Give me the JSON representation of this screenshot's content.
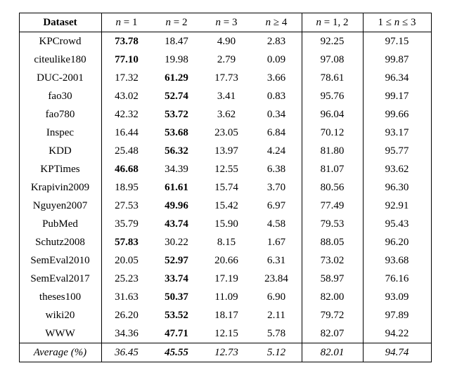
{
  "table": {
    "columns": [
      "Dataset",
      "n = 1",
      "n = 2",
      "n = 3",
      "n ≥ 4",
      "n = 1, 2",
      "1 ≤ n ≤ 3"
    ],
    "rows": [
      {
        "name": "KPCrowd",
        "v": [
          "73.78",
          "18.47",
          "4.90",
          "2.83",
          "92.25",
          "97.15"
        ],
        "bold": [
          0
        ]
      },
      {
        "name": "citeulike180",
        "v": [
          "77.10",
          "19.98",
          "2.79",
          "0.09",
          "97.08",
          "99.87"
        ],
        "bold": [
          0
        ]
      },
      {
        "name": "DUC-2001",
        "v": [
          "17.32",
          "61.29",
          "17.73",
          "3.66",
          "78.61",
          "96.34"
        ],
        "bold": [
          1
        ]
      },
      {
        "name": "fao30",
        "v": [
          "43.02",
          "52.74",
          "3.41",
          "0.83",
          "95.76",
          "99.17"
        ],
        "bold": [
          1
        ]
      },
      {
        "name": "fao780",
        "v": [
          "42.32",
          "53.72",
          "3.62",
          "0.34",
          "96.04",
          "99.66"
        ],
        "bold": [
          1
        ]
      },
      {
        "name": "Inspec",
        "v": [
          "16.44",
          "53.68",
          "23.05",
          "6.84",
          "70.12",
          "93.17"
        ],
        "bold": [
          1
        ]
      },
      {
        "name": "KDD",
        "v": [
          "25.48",
          "56.32",
          "13.97",
          "4.24",
          "81.80",
          "95.77"
        ],
        "bold": [
          1
        ]
      },
      {
        "name": "KPTimes",
        "v": [
          "46.68",
          "34.39",
          "12.55",
          "6.38",
          "81.07",
          "93.62"
        ],
        "bold": [
          0
        ]
      },
      {
        "name": "Krapivin2009",
        "v": [
          "18.95",
          "61.61",
          "15.74",
          "3.70",
          "80.56",
          "96.30"
        ],
        "bold": [
          1
        ]
      },
      {
        "name": "Nguyen2007",
        "v": [
          "27.53",
          "49.96",
          "15.42",
          "6.97",
          "77.49",
          "92.91"
        ],
        "bold": [
          1
        ]
      },
      {
        "name": "PubMed",
        "v": [
          "35.79",
          "43.74",
          "15.90",
          "4.58",
          "79.53",
          "95.43"
        ],
        "bold": [
          1
        ]
      },
      {
        "name": "Schutz2008",
        "v": [
          "57.83",
          "30.22",
          "8.15",
          "1.67",
          "88.05",
          "96.20"
        ],
        "bold": [
          0
        ]
      },
      {
        "name": "SemEval2010",
        "v": [
          "20.05",
          "52.97",
          "20.66",
          "6.31",
          "73.02",
          "93.68"
        ],
        "bold": [
          1
        ]
      },
      {
        "name": "SemEval2017",
        "v": [
          "25.23",
          "33.74",
          "17.19",
          "23.84",
          "58.97",
          "76.16"
        ],
        "bold": [
          1
        ]
      },
      {
        "name": "theses100",
        "v": [
          "31.63",
          "50.37",
          "11.09",
          "6.90",
          "82.00",
          "93.09"
        ],
        "bold": [
          1
        ]
      },
      {
        "name": "wiki20",
        "v": [
          "26.20",
          "53.52",
          "18.17",
          "2.11",
          "79.72",
          "97.89"
        ],
        "bold": [
          1
        ]
      },
      {
        "name": "WWW",
        "v": [
          "34.36",
          "47.71",
          "12.15",
          "5.78",
          "82.07",
          "94.22"
        ],
        "bold": [
          1
        ]
      }
    ],
    "avg": {
      "label": "Average (%)",
      "v": [
        "36.45",
        "45.55",
        "12.73",
        "5.12",
        "82.01",
        "94.74"
      ],
      "bold": [
        1
      ]
    },
    "background_color": "#ffffff",
    "border_color": "#000000",
    "font_family": "Times New Roman",
    "header_fontsize": 15,
    "cell_fontsize": 15
  }
}
